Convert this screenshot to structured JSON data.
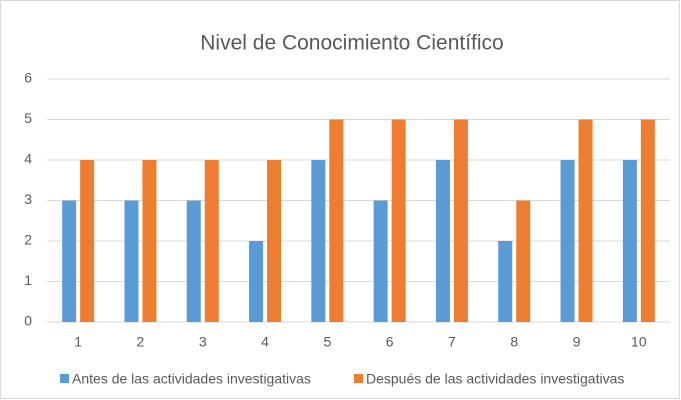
{
  "chart_data": {
    "type": "bar",
    "title": "Nivel de Conocimiento Científico",
    "categories": [
      "1",
      "2",
      "3",
      "4",
      "5",
      "6",
      "7",
      "8",
      "9",
      "10"
    ],
    "series": [
      {
        "name": "Antes de las actividades investigativas",
        "color": "#5b9bd5",
        "values": [
          3,
          3,
          3,
          2,
          4,
          3,
          4,
          2,
          4,
          4
        ]
      },
      {
        "name": "Después de las actividades investigativas",
        "color": "#ed7d31",
        "values": [
          4,
          4,
          4,
          4,
          5,
          5,
          5,
          3,
          5,
          5
        ]
      }
    ],
    "ylim": [
      0,
      6
    ],
    "yticks": [
      0,
      1,
      2,
      3,
      4,
      5,
      6
    ],
    "grid": true,
    "legend": "bottom"
  }
}
